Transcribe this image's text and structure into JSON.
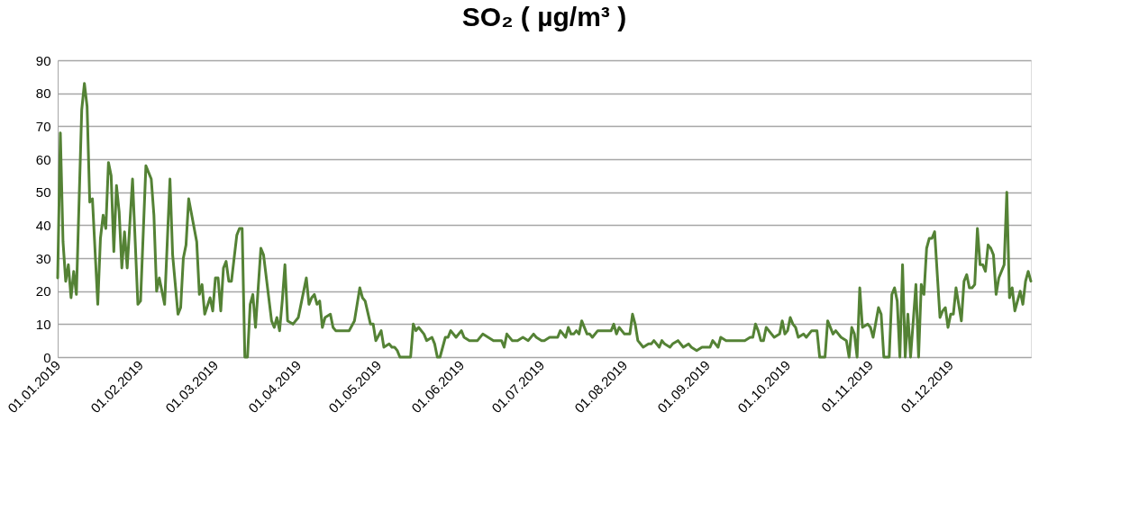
{
  "chart_data": {
    "type": "line",
    "title": "SO₂ ( µg/m³ )",
    "x": [
      "2019-01-01",
      "2019-01-02",
      "2019-01-03",
      "2019-01-04",
      "2019-01-05",
      "2019-01-06",
      "2019-01-07",
      "2019-01-08",
      "2019-01-10",
      "2019-01-11",
      "2019-01-12",
      "2019-01-13",
      "2019-01-14",
      "2019-01-16",
      "2019-01-17",
      "2019-01-18",
      "2019-01-19",
      "2019-01-20",
      "2019-01-21",
      "2019-01-22",
      "2019-01-23",
      "2019-01-24",
      "2019-01-25",
      "2019-01-26",
      "2019-01-27",
      "2019-01-29",
      "2019-01-31",
      "2019-02-01",
      "2019-02-03",
      "2019-02-05",
      "2019-02-06",
      "2019-02-07",
      "2019-02-08",
      "2019-02-10",
      "2019-02-12",
      "2019-02-13",
      "2019-02-15",
      "2019-02-16",
      "2019-02-17",
      "2019-02-18",
      "2019-02-19",
      "2019-02-22",
      "2019-02-23",
      "2019-02-24",
      "2019-02-25",
      "2019-02-27",
      "2019-02-28",
      "2019-03-01",
      "2019-03-02",
      "2019-03-03",
      "2019-03-04",
      "2019-03-05",
      "2019-03-06",
      "2019-03-07",
      "2019-03-09",
      "2019-03-10",
      "2019-03-11",
      "2019-03-12",
      "2019-03-13",
      "2019-03-14",
      "2019-03-15",
      "2019-03-16",
      "2019-03-18",
      "2019-03-19",
      "2019-03-22",
      "2019-03-23",
      "2019-03-24",
      "2019-03-25",
      "2019-03-26",
      "2019-03-27",
      "2019-03-28",
      "2019-03-30",
      "2019-04-01",
      "2019-04-02",
      "2019-04-04",
      "2019-04-05",
      "2019-04-06",
      "2019-04-07",
      "2019-04-08",
      "2019-04-09",
      "2019-04-10",
      "2019-04-11",
      "2019-04-13",
      "2019-04-14",
      "2019-04-15",
      "2019-04-17",
      "2019-04-18",
      "2019-04-19",
      "2019-04-20",
      "2019-04-22",
      "2019-04-24",
      "2019-04-25",
      "2019-04-26",
      "2019-04-28",
      "2019-04-29",
      "2019-04-30",
      "2019-05-02",
      "2019-05-03",
      "2019-05-05",
      "2019-05-06",
      "2019-05-07",
      "2019-05-08",
      "2019-05-09",
      "2019-05-13",
      "2019-05-14",
      "2019-05-15",
      "2019-05-16",
      "2019-05-18",
      "2019-05-19",
      "2019-05-21",
      "2019-05-22",
      "2019-05-23",
      "2019-05-24",
      "2019-05-26",
      "2019-05-27",
      "2019-05-28",
      "2019-05-30",
      "2019-06-01",
      "2019-06-02",
      "2019-06-04",
      "2019-06-07",
      "2019-06-09",
      "2019-06-11",
      "2019-06-13",
      "2019-06-15",
      "2019-06-16",
      "2019-06-17",
      "2019-06-18",
      "2019-06-20",
      "2019-06-22",
      "2019-06-24",
      "2019-06-26",
      "2019-06-28",
      "2019-06-29",
      "2019-07-01",
      "2019-07-02",
      "2019-07-04",
      "2019-07-07",
      "2019-07-08",
      "2019-07-10",
      "2019-07-11",
      "2019-07-12",
      "2019-07-13",
      "2019-07-14",
      "2019-07-15",
      "2019-07-16",
      "2019-07-18",
      "2019-07-19",
      "2019-07-20",
      "2019-07-22",
      "2019-07-24",
      "2019-07-27",
      "2019-07-28",
      "2019-07-29",
      "2019-07-30",
      "2019-08-01",
      "2019-08-03",
      "2019-08-04",
      "2019-08-05",
      "2019-08-06",
      "2019-08-08",
      "2019-08-10",
      "2019-08-11",
      "2019-08-12",
      "2019-08-14",
      "2019-08-15",
      "2019-08-16",
      "2019-08-18",
      "2019-08-19",
      "2019-08-21",
      "2019-08-23",
      "2019-08-25",
      "2019-08-26",
      "2019-08-28",
      "2019-08-30",
      "2019-09-01",
      "2019-09-02",
      "2019-09-03",
      "2019-09-05",
      "2019-09-06",
      "2019-09-08",
      "2019-09-10",
      "2019-09-12",
      "2019-09-15",
      "2019-09-17",
      "2019-09-18",
      "2019-09-19",
      "2019-09-20",
      "2019-09-21",
      "2019-09-22",
      "2019-09-23",
      "2019-09-25",
      "2019-09-26",
      "2019-09-28",
      "2019-09-29",
      "2019-09-30",
      "2019-10-01",
      "2019-10-02",
      "2019-10-03",
      "2019-10-04",
      "2019-10-05",
      "2019-10-07",
      "2019-10-08",
      "2019-10-10",
      "2019-10-12",
      "2019-10-13",
      "2019-10-15",
      "2019-10-16",
      "2019-10-18",
      "2019-10-19",
      "2019-10-21",
      "2019-10-23",
      "2019-10-24",
      "2019-10-25",
      "2019-10-26",
      "2019-10-27",
      "2019-10-28",
      "2019-10-29",
      "2019-10-31",
      "2019-11-01",
      "2019-11-02",
      "2019-11-04",
      "2019-11-05",
      "2019-11-06",
      "2019-11-08",
      "2019-11-09",
      "2019-11-10",
      "2019-11-11",
      "2019-11-12",
      "2019-11-13",
      "2019-11-14",
      "2019-11-15",
      "2019-11-16",
      "2019-11-18",
      "2019-11-19",
      "2019-11-20",
      "2019-11-21",
      "2019-11-22",
      "2019-11-23",
      "2019-11-24",
      "2019-11-25",
      "2019-11-27",
      "2019-11-28",
      "2019-11-29",
      "2019-11-30",
      "2019-12-01",
      "2019-12-02",
      "2019-12-03",
      "2019-12-05",
      "2019-12-06",
      "2019-12-07",
      "2019-12-08",
      "2019-12-09",
      "2019-12-10",
      "2019-12-11",
      "2019-12-12",
      "2019-12-13",
      "2019-12-14",
      "2019-12-15",
      "2019-12-16",
      "2019-12-17",
      "2019-12-18",
      "2019-12-19",
      "2019-12-21",
      "2019-12-22",
      "2019-12-23",
      "2019-12-24",
      "2019-12-25",
      "2019-12-27",
      "2019-12-28",
      "2019-12-29",
      "2019-12-30",
      "2019-12-31"
    ],
    "series": [
      {
        "color": "#548235",
        "values": [
          24,
          68,
          35,
          23,
          28,
          18,
          26,
          19,
          75,
          83,
          76,
          47,
          48,
          16,
          36,
          43,
          39,
          59,
          55,
          32,
          52,
          44,
          27,
          38,
          27,
          54,
          16,
          17,
          58,
          54,
          43,
          20,
          24,
          16,
          54,
          31,
          13,
          15,
          30,
          34,
          48,
          35,
          19,
          22,
          13,
          18,
          14,
          24,
          24,
          14,
          27,
          29,
          23,
          23,
          37,
          39,
          39,
          0,
          0,
          16,
          19,
          9,
          33,
          31,
          11,
          9,
          12,
          8,
          17,
          28,
          11,
          10,
          12,
          16,
          24,
          16,
          18,
          19,
          16,
          17,
          9,
          12,
          13,
          9,
          8,
          8,
          8,
          8,
          8,
          11,
          21,
          18,
          17,
          10,
          10,
          5,
          8,
          3,
          4,
          3,
          3,
          2,
          0,
          0,
          10,
          8,
          9,
          7,
          5,
          6,
          4,
          0,
          0,
          6,
          6,
          8,
          6,
          8,
          6,
          5,
          5,
          7,
          6,
          5,
          5,
          5,
          3,
          7,
          5,
          5,
          6,
          5,
          7,
          6,
          5,
          5,
          6,
          6,
          8,
          6,
          9,
          7,
          7,
          8,
          7,
          11,
          7,
          7,
          6,
          8,
          8,
          8,
          10,
          7,
          9,
          7,
          7,
          13,
          10,
          5,
          3,
          4,
          4,
          5,
          3,
          5,
          4,
          3,
          4,
          5,
          3,
          4,
          3,
          2,
          3,
          3,
          3,
          5,
          3,
          6,
          5,
          5,
          5,
          5,
          6,
          6,
          10,
          8,
          5,
          5,
          9,
          7,
          6,
          7,
          11,
          7,
          8,
          12,
          10,
          9,
          6,
          7,
          6,
          8,
          8,
          0,
          0,
          11,
          7,
          8,
          6,
          5,
          0,
          9,
          7,
          0,
          21,
          9,
          10,
          9,
          6,
          15,
          13,
          0,
          0,
          19,
          21,
          17,
          0,
          28,
          0,
          13,
          0,
          22,
          0,
          22,
          19,
          33,
          36,
          36,
          38,
          12,
          14,
          15,
          9,
          13,
          13,
          21,
          11,
          23,
          25,
          21,
          21,
          22,
          39,
          28,
          28,
          26,
          34,
          33,
          31,
          19,
          24,
          28,
          50,
          18,
          21,
          14,
          20,
          16,
          23,
          26,
          23
        ]
      }
    ],
    "xlim": [
      "2019-01-01",
      "2019-12-31"
    ],
    "xticks": [
      {
        "value": "2019-01-01",
        "label": "01.01.2019"
      },
      {
        "value": "2019-02-01",
        "label": "01.02.2019"
      },
      {
        "value": "2019-03-01",
        "label": "01.03.2019"
      },
      {
        "value": "2019-04-01",
        "label": "01.04.2019"
      },
      {
        "value": "2019-05-01",
        "label": "01.05.2019"
      },
      {
        "value": "2019-06-01",
        "label": "01.06.2019"
      },
      {
        "value": "2019-07-01",
        "label": "01.07.2019"
      },
      {
        "value": "2019-08-01",
        "label": "01.08.2019"
      },
      {
        "value": "2019-09-01",
        "label": "01.09.2019"
      },
      {
        "value": "2019-10-01",
        "label": "01.10.2019"
      },
      {
        "value": "2019-11-01",
        "label": "01.11.2019"
      },
      {
        "value": "2019-12-01",
        "label": "01.12.2019"
      }
    ],
    "ylim": [
      0,
      90
    ],
    "yticks": [
      0,
      10,
      20,
      30,
      40,
      50,
      60,
      70,
      80,
      90
    ],
    "grid": "y"
  }
}
